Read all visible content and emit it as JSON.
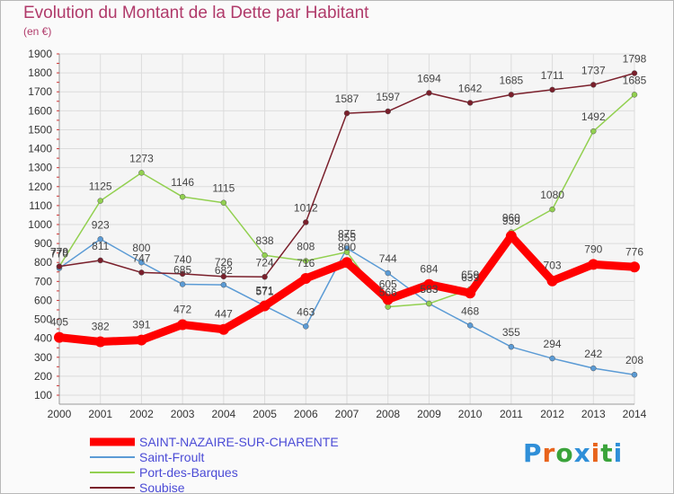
{
  "header": {
    "title": "Evolution du Montant de la Dette par Habitant",
    "unit": "(en €)"
  },
  "logo": {
    "text": "Proxiti",
    "letters": [
      "P",
      "r",
      "o",
      "x",
      "i",
      "t",
      "i"
    ],
    "colors": [
      "#2f8fd8",
      "#e8641c",
      "#3aa33a",
      "#2f8fd8",
      "#e8641c",
      "#3aa33a",
      "#2f8fd8"
    ]
  },
  "chart_data": {
    "type": "line",
    "title": "Evolution du Montant de la Dette par Habitant",
    "ylabel": "(en €)",
    "xlabel": "",
    "x": [
      "2000",
      "2001",
      "2002",
      "2003",
      "2004",
      "2005",
      "2006",
      "2007",
      "2008",
      "2009",
      "2010",
      "2011",
      "2012",
      "2013",
      "2014"
    ],
    "ylim": [
      100,
      1900
    ],
    "yticks": [
      100,
      200,
      300,
      400,
      500,
      600,
      700,
      800,
      900,
      1000,
      1100,
      1200,
      1300,
      1400,
      1500,
      1600,
      1700,
      1800,
      1900
    ],
    "grid": true,
    "legend": "bottom-left",
    "series": [
      {
        "name": "SAINT-NAZAIRE-SUR-CHARENTE",
        "color": "#ff0000",
        "values": [
          405,
          382,
          391,
          472,
          447,
          571,
          716,
          800,
          605,
          684,
          639,
          939,
          703,
          790,
          776
        ]
      },
      {
        "name": "Saint-Froult",
        "color": "#5b9bd5",
        "values": [
          770,
          923,
          800,
          685,
          682,
          571,
          463,
          875,
          744,
          583,
          468,
          355,
          294,
          242,
          208
        ]
      },
      {
        "name": "Port-des-Barques",
        "color": "#92d050",
        "values": [
          779,
          1125,
          1273,
          1146,
          1115,
          838,
          808,
          855,
          566,
          583,
          659,
          960,
          1080,
          1492,
          1685
        ]
      },
      {
        "name": "Soubise",
        "color": "#7a1f2b",
        "values": [
          779,
          811,
          747,
          740,
          726,
          724,
          1012,
          1587,
          1597,
          1694,
          1642,
          1685,
          1711,
          1737,
          1798
        ]
      }
    ]
  }
}
